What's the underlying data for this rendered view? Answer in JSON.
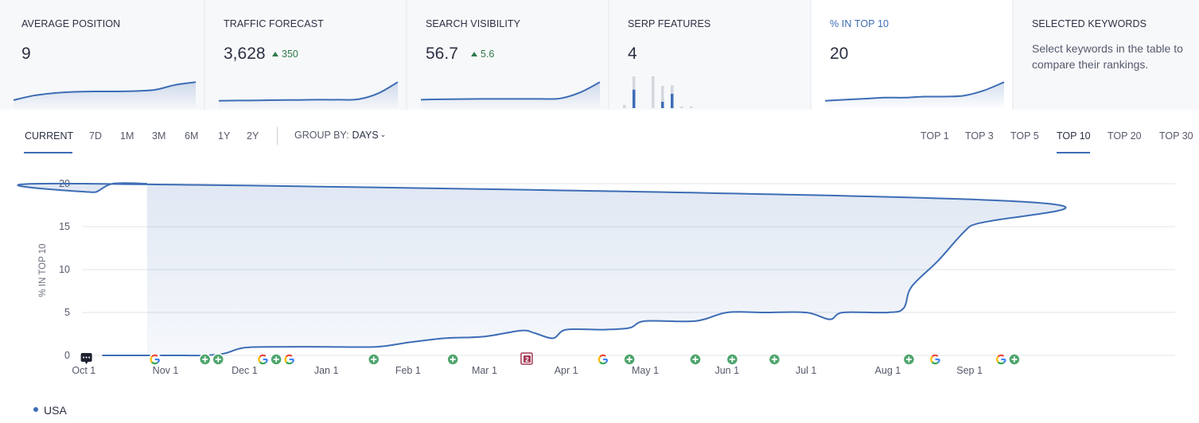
{
  "cards": [
    {
      "label": "AVERAGE POSITION",
      "value": "9",
      "delta": "",
      "spark": [
        0.08,
        0.3,
        0.42,
        0.48,
        0.5,
        0.5,
        0.52,
        0.58,
        0.82,
        0.95
      ]
    },
    {
      "label": "TRAFFIC FORECAST",
      "value": "3,628",
      "delta": "350",
      "spark": [
        0.05,
        0.06,
        0.07,
        0.08,
        0.09,
        0.1,
        0.1,
        0.12,
        0.4,
        0.95
      ]
    },
    {
      "label": "SEARCH VISIBILITY",
      "value": "56.7",
      "delta": "5.6",
      "spark": [
        0.1,
        0.12,
        0.13,
        0.14,
        0.14,
        0.14,
        0.14,
        0.16,
        0.45,
        0.95
      ]
    },
    {
      "label": "SERP FEATURES",
      "value": "4",
      "delta": ""
    },
    {
      "label": "% IN TOP 10",
      "value": "20",
      "delta": "",
      "spark": [
        0.05,
        0.1,
        0.15,
        0.2,
        0.2,
        0.25,
        0.25,
        0.3,
        0.55,
        0.95
      ]
    },
    {
      "label": "SELECTED KEYWORDS",
      "value": "",
      "delta": "",
      "description": "Select keywords in the table to compare their rankings."
    }
  ],
  "serp_bars": [
    {
      "gray": 0.1,
      "blue": 0
    },
    {
      "gray": 1.0,
      "blue": 0.58
    },
    {
      "gray": 0,
      "blue": 0
    },
    {
      "gray": 1.0,
      "blue": 0
    },
    {
      "gray": 0.7,
      "blue": 0.2
    },
    {
      "gray": 0.72,
      "blue": 0.45
    },
    {
      "gray": 0.05,
      "blue": 0
    },
    {
      "gray": 0.05,
      "blue": 0
    }
  ],
  "ranges": [
    "CURRENT",
    "7D",
    "1M",
    "3M",
    "6M",
    "1Y",
    "2Y"
  ],
  "active_range": "CURRENT",
  "group_by": {
    "label": "GROUP BY:",
    "value": "DAYS"
  },
  "tops": [
    "TOP 1",
    "TOP 3",
    "TOP 5",
    "TOP 10",
    "TOP 20",
    "TOP 30"
  ],
  "active_top": "TOP 10",
  "chart_data": {
    "type": "area",
    "title": "",
    "xlabel": "",
    "ylabel": "% IN TOP 10",
    "ylim": [
      0,
      20
    ],
    "yticks": [
      0,
      5,
      10,
      15,
      20
    ],
    "grid": "horizontal",
    "x_tick_labels": [
      "Nov 1",
      "Dec 1",
      "Jan 1",
      "Feb 1",
      "Mar 1",
      "Apr 1",
      "May 1",
      "Jun 1",
      "Jul 1",
      "Aug 1",
      "Sep 1",
      "Oct 1"
    ],
    "series": [
      {
        "name": "USA",
        "color": "#3d6db5",
        "x": [
          "Oct 8",
          "Nov 1",
          "Nov 8",
          "Nov 15",
          "Nov 23",
          "Dec 1",
          "Dec 15",
          "Jan 1",
          "Jan 20",
          "Feb 1",
          "Feb 15",
          "Mar 1",
          "Mar 15",
          "Mar 20",
          "Mar 27",
          "Apr 1",
          "Apr 15",
          "Apr 25",
          "May 1",
          "May 20",
          "Jun 1",
          "Jun 15",
          "Jul 1",
          "Jul 10",
          "Jul 15",
          "Aug 1",
          "Aug 7",
          "Aug 10",
          "Aug 20",
          "Sep 1",
          "Sep 15",
          "Oct 1",
          "Oct 5",
          "Oct 12",
          "Oct 25"
        ],
        "values": [
          0,
          0,
          0,
          0,
          0.2,
          0.9,
          1,
          1,
          1,
          1.5,
          2,
          2.2,
          2.9,
          2.6,
          2,
          3,
          3,
          3.2,
          4,
          4,
          5,
          5,
          5,
          4.2,
          5,
          5,
          5.5,
          8,
          11,
          15,
          18,
          20,
          19,
          20,
          20
        ]
      }
    ],
    "event_markers": [
      {
        "x": "Oct 28",
        "type": "google"
      },
      {
        "x": "Nov 16",
        "type": "plus"
      },
      {
        "x": "Nov 21",
        "type": "plus"
      },
      {
        "x": "Dec 8",
        "type": "google"
      },
      {
        "x": "Dec 13",
        "type": "plus"
      },
      {
        "x": "Dec 18",
        "type": "google"
      },
      {
        "x": "Jan 19",
        "type": "plus"
      },
      {
        "x": "Feb 18",
        "type": "plus"
      },
      {
        "x": "Mar 17",
        "type": "note",
        "label": "2"
      },
      {
        "x": "Apr 15",
        "type": "google"
      },
      {
        "x": "Apr 25",
        "type": "plus"
      },
      {
        "x": "May 20",
        "type": "plus"
      },
      {
        "x": "Jun 3",
        "type": "plus"
      },
      {
        "x": "Jun 19",
        "type": "plus"
      },
      {
        "x": "Aug 9",
        "type": "plus"
      },
      {
        "x": "Aug 19",
        "type": "google"
      },
      {
        "x": "Sep 13",
        "type": "google"
      },
      {
        "x": "Sep 18",
        "type": "plus"
      },
      {
        "x": "Oct 2",
        "type": "comment"
      }
    ]
  }
}
